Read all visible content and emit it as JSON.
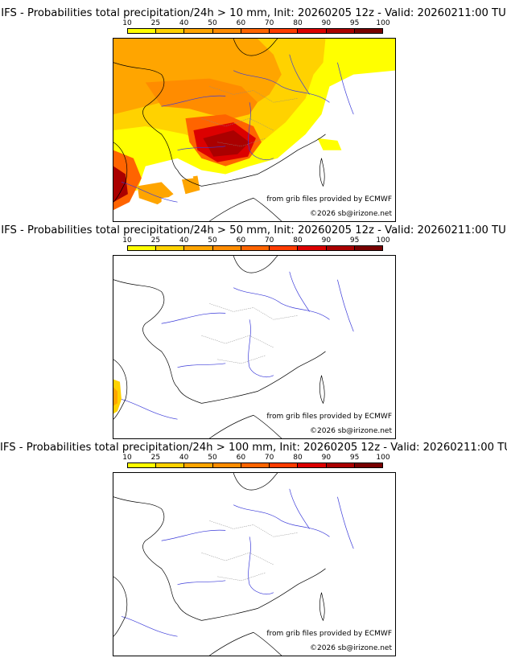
{
  "scale": {
    "labels": [
      "10",
      "25",
      "40",
      "50",
      "60",
      "70",
      "80",
      "90",
      "95",
      "100"
    ],
    "colors": [
      "#ffff00",
      "#ffd200",
      "#ffa500",
      "#ff8c00",
      "#ff6400",
      "#ff3c00",
      "#dc0000",
      "#aa0000",
      "#780000"
    ]
  },
  "panels": [
    {
      "title": "IFS - Probabilities total precipitation/24h > 10 mm, Init: 20260205 12z - Valid: 20260211:00 TU",
      "source": "from grib files provided by ECMWF",
      "copyright": "©2026 sb@irizone.net"
    },
    {
      "title": "IFS - Probabilities total precipitation/24h > 50 mm, Init: 20260205 12z - Valid: 20260211:00 TU",
      "source": "from grib files provided by ECMWF",
      "copyright": "©2026 sb@irizone.net"
    },
    {
      "title": "IFS - Probabilities total precipitation/24h > 100 mm, Init: 20260205 12z - Valid: 20260211:00 TU",
      "source": "from grib files provided by ECMWF",
      "copyright": "©2026 sb@irizone.net"
    }
  ],
  "colors": {
    "border": "#000000",
    "rivers": "#3b3bd9",
    "admin": "#9a9a9a",
    "coast": "#000000"
  }
}
